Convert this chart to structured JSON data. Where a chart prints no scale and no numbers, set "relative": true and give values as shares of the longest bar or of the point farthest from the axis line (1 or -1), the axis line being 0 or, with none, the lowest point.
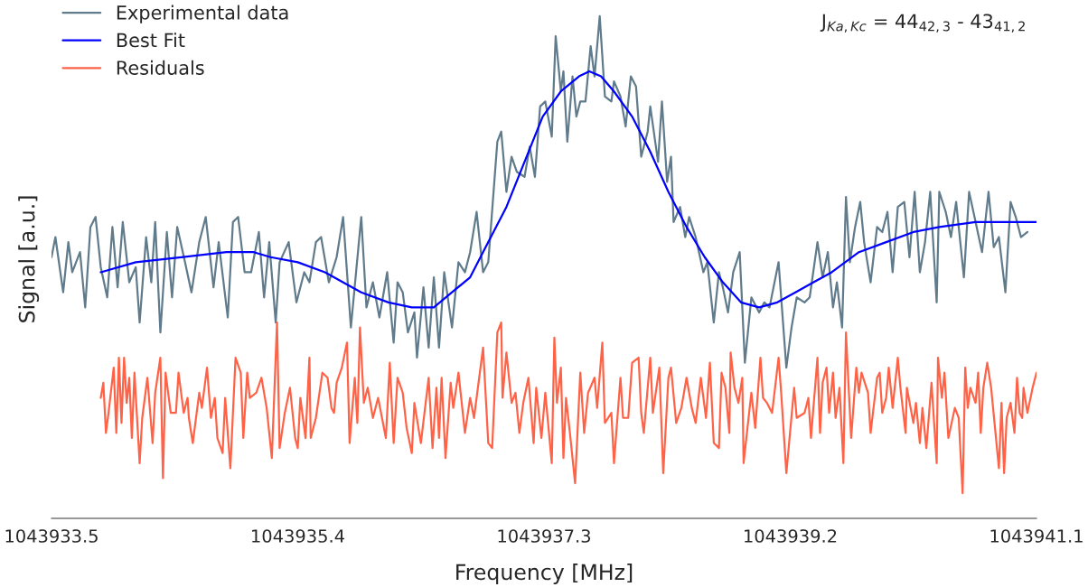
{
  "chart_data": {
    "type": "line",
    "relative": true,
    "xlabel": "Frequency [MHz]",
    "ylabel": "Signal [a.u.]",
    "xlim": [
      1043933.5,
      1043941.1
    ],
    "xticks": [
      1043933.5,
      1043935.4,
      1043937.3,
      1043939.2,
      1043941.1
    ],
    "tick_labels": "x",
    "grid": false,
    "legend": "top left",
    "marker": "none",
    "line_style": "solid",
    "annotations": [
      "J$_{Ka,Kc}$ = 44$_{42,3}$ - 43$_{41,2}$"
    ],
    "series": [
      {
        "name": "Experimental data",
        "color": "#607b8b",
        "x": [
          1043933.5,
          1043933.53,
          1043933.59,
          1043933.63,
          1043933.66,
          1043933.72,
          1043933.76,
          1043933.8,
          1043933.84,
          1043933.88,
          1043933.93,
          1043933.97,
          1043934.01,
          1043934.05,
          1043934.1,
          1043934.15,
          1043934.18,
          1043934.23,
          1043934.27,
          1043934.3,
          1043934.34,
          1043934.39,
          1043934.43,
          1043934.47,
          1043934.53,
          1043934.58,
          1043934.64,
          1043934.69,
          1043934.75,
          1043934.79,
          1043934.86,
          1043934.9,
          1043934.94,
          1043934.99,
          1043935.04,
          1043935.1,
          1043935.14,
          1043935.18,
          1043935.23,
          1043935.26,
          1043935.33,
          1043935.39,
          1043935.45,
          1043935.49,
          1043935.54,
          1043935.58,
          1043935.64,
          1043935.7,
          1043935.75,
          1043935.81,
          1043935.85,
          1043935.89,
          1043935.93,
          1043935.98,
          1043936.03,
          1043936.09,
          1043936.14,
          1043936.17,
          1043936.21,
          1043936.25,
          1043936.3,
          1043936.32,
          1043936.37,
          1043936.41,
          1043936.45,
          1043936.49,
          1043936.53,
          1043936.59,
          1043936.64,
          1043936.69,
          1043936.73,
          1043936.78,
          1043936.83,
          1043936.87,
          1043936.94,
          1043936.97,
          1043937.01,
          1043937.05,
          1043937.09,
          1043937.15,
          1043937.19,
          1043937.23,
          1043937.27,
          1043937.31,
          1043937.36,
          1043937.39,
          1043937.43,
          1043937.45,
          1043937.48,
          1043937.52,
          1043937.55,
          1043937.58,
          1043937.62,
          1043937.66,
          1043937.69,
          1043937.73,
          1043937.77,
          1043937.82,
          1043937.84,
          1043937.89,
          1043937.93,
          1043937.97,
          1043938.01,
          1043938.05,
          1043938.1,
          1043938.12,
          1043938.18,
          1043938.21,
          1043938.25,
          1043938.28,
          1043938.3,
          1043938.35,
          1043938.39,
          1043938.42,
          1043938.47,
          1043938.53,
          1043938.56,
          1043938.61,
          1043938.65,
          1043938.68,
          1043938.72,
          1043938.76,
          1043938.81,
          1043938.85,
          1043938.9,
          1043938.96,
          1043939.0,
          1043939.04,
          1043939.11,
          1043939.17,
          1043939.21,
          1043939.25,
          1043939.31,
          1043939.35,
          1043939.41,
          1043939.45,
          1043939.49,
          1043939.53,
          1043939.56,
          1043939.6,
          1043939.63,
          1043939.66,
          1043939.7,
          1043939.74,
          1043939.77,
          1043939.82,
          1043939.87,
          1043939.91,
          1043939.95,
          1043939.99,
          1043940.03,
          1043940.08,
          1043940.12,
          1043940.16,
          1043940.2,
          1043940.24,
          1043940.28,
          1043940.33,
          1043940.35,
          1043940.4,
          1043940.44,
          1043940.48,
          1043940.54,
          1043940.58,
          1043940.63,
          1043940.68,
          1043940.73,
          1043940.77,
          1043940.81,
          1043940.86,
          1043940.9,
          1043940.94,
          1043940.98,
          1043941.03
        ],
        "values": [
          0.52,
          0.56,
          0.45,
          0.55,
          0.49,
          0.53,
          0.42,
          0.58,
          0.6,
          0.5,
          0.44,
          0.58,
          0.46,
          0.59,
          0.47,
          0.5,
          0.39,
          0.56,
          0.47,
          0.59,
          0.37,
          0.57,
          0.44,
          0.58,
          0.51,
          0.45,
          0.55,
          0.6,
          0.46,
          0.55,
          0.4,
          0.59,
          0.6,
          0.49,
          0.49,
          0.57,
          0.44,
          0.55,
          0.39,
          0.51,
          0.55,
          0.43,
          0.49,
          0.47,
          0.55,
          0.56,
          0.47,
          0.52,
          0.6,
          0.38,
          0.49,
          0.6,
          0.42,
          0.47,
          0.4,
          0.49,
          0.35,
          0.47,
          0.45,
          0.37,
          0.41,
          0.32,
          0.46,
          0.34,
          0.48,
          0.34,
          0.49,
          0.38,
          0.51,
          0.49,
          0.53,
          0.61,
          0.49,
          0.51,
          0.75,
          0.77,
          0.65,
          0.72,
          0.69,
          0.68,
          0.74,
          0.68,
          0.82,
          0.83,
          0.76,
          0.96,
          0.85,
          0.89,
          0.75,
          0.88,
          0.8,
          0.83,
          0.83,
          0.94,
          0.88,
          1.0,
          0.84,
          0.83,
          0.87,
          0.84,
          0.78,
          0.88,
          0.86,
          0.72,
          0.77,
          0.82,
          0.71,
          0.83,
          0.67,
          0.72,
          0.59,
          0.62,
          0.56,
          0.6,
          0.56,
          0.49,
          0.51,
          0.39,
          0.49,
          0.46,
          0.41,
          0.49,
          0.53,
          0.31,
          0.44,
          0.41,
          0.43,
          0.42,
          0.51,
          0.3,
          0.38,
          0.44,
          0.43,
          0.44,
          0.55,
          0.48,
          0.53,
          0.42,
          0.47,
          0.38,
          0.64,
          0.51,
          0.58,
          0.63,
          0.55,
          0.47,
          0.58,
          0.57,
          0.61,
          0.49,
          0.62,
          0.63,
          0.52,
          0.65,
          0.49,
          0.55,
          0.65,
          0.43,
          0.65,
          0.61,
          0.56,
          0.63,
          0.48,
          0.65,
          0.59,
          0.53,
          0.65,
          0.54,
          0.56,
          0.45,
          0.63,
          0.6,
          0.56,
          0.57
        ]
      },
      {
        "name": "Best Fit",
        "color": "#0000ff",
        "x": [
          1043933.88,
          1043934.15,
          1043934.5,
          1043934.85,
          1043935.06,
          1043935.19,
          1043935.4,
          1043935.61,
          1043935.89,
          1043936.1,
          1043936.28,
          1043936.45,
          1043936.59,
          1043936.73,
          1043936.87,
          1043937.01,
          1043937.15,
          1043937.29,
          1043937.43,
          1043937.57,
          1043937.65,
          1043937.74,
          1043937.84,
          1043937.98,
          1043938.12,
          1043938.26,
          1043938.4,
          1043938.54,
          1043938.68,
          1043938.82,
          1043938.96,
          1043939.1,
          1043939.24,
          1043939.38,
          1043939.52,
          1043939.73,
          1043939.94,
          1043940.15,
          1043940.35,
          1043940.63,
          1043940.84,
          1043941.1
        ],
        "values": [
          0.49,
          0.51,
          0.52,
          0.53,
          0.53,
          0.52,
          0.51,
          0.49,
          0.45,
          0.43,
          0.42,
          0.42,
          0.45,
          0.48,
          0.55,
          0.62,
          0.71,
          0.8,
          0.85,
          0.88,
          0.89,
          0.88,
          0.85,
          0.8,
          0.73,
          0.65,
          0.58,
          0.52,
          0.47,
          0.43,
          0.42,
          0.43,
          0.45,
          0.47,
          0.49,
          0.53,
          0.55,
          0.57,
          0.58,
          0.59,
          0.59,
          0.59
        ]
      },
      {
        "name": "Residuals",
        "color": "#ff6347",
        "x": [
          1043933.88,
          1043933.9,
          1043933.92,
          1043933.94,
          1043933.98,
          1043934.0,
          1043934.02,
          1043934.04,
          1043934.06,
          1043934.08,
          1043934.1,
          1043934.12,
          1043934.14,
          1043934.18,
          1043934.2,
          1043934.24,
          1043934.28,
          1043934.3,
          1043934.34,
          1043934.36,
          1043934.38,
          1043934.42,
          1043934.46,
          1043934.48,
          1043934.52,
          1043934.55,
          1043934.56,
          1043934.59,
          1043934.64,
          1043934.66,
          1043934.7,
          1043934.73,
          1043934.76,
          1043934.78,
          1043934.82,
          1043934.84,
          1043934.88,
          1043934.92,
          1043934.96,
          1043934.98,
          1043935.01,
          1043935.03,
          1043935.08,
          1043935.12,
          1043935.16,
          1043935.2,
          1043935.24,
          1043935.26,
          1043935.3,
          1043935.34,
          1043935.38,
          1043935.4,
          1043935.42,
          1043935.46,
          1043935.49,
          1043935.5,
          1043935.54,
          1043935.59,
          1043935.63,
          1043935.66,
          1043935.68,
          1043935.7,
          1043935.74,
          1043935.78,
          1043935.8,
          1043935.84,
          1043935.86,
          1043935.88,
          1043935.91,
          1043935.94,
          1043935.98,
          1043936.02,
          1043936.08,
          1043936.11,
          1043936.14,
          1043936.17,
          1043936.21,
          1043936.24,
          1043936.28,
          1043936.3,
          1043936.35,
          1043936.41,
          1043936.44,
          1043936.47,
          1043936.49,
          1043936.51,
          1043936.54,
          1043936.58,
          1043936.6,
          1043936.64,
          1043936.69,
          1043936.73,
          1043936.76,
          1043936.83,
          1043936.87,
          1043936.9,
          1043936.94,
          1043936.97,
          1043936.98,
          1043937.01,
          1043937.05,
          1043937.08,
          1043937.11,
          1043937.14,
          1043937.18,
          1043937.22,
          1043937.24,
          1043937.28,
          1043937.31,
          1043937.36,
          1043937.38,
          1043937.4,
          1043937.43,
          1043937.45,
          1043937.47,
          1043937.5,
          1043937.54,
          1043937.58,
          1043937.61,
          1043937.64,
          1043937.69,
          1043937.71,
          1043937.75,
          1043937.77,
          1043937.82,
          1043937.84,
          1043937.89,
          1043937.91,
          1043937.95,
          1043937.98,
          1043938.03,
          1043938.05,
          1043938.07,
          1043938.12,
          1043938.14,
          1043938.19,
          1043938.22,
          1043938.26,
          1043938.28,
          1043938.32,
          1043938.36,
          1043938.4,
          1043938.44,
          1043938.47,
          1043938.51,
          1043938.55,
          1043938.58,
          1043938.61,
          1043938.65,
          1043938.67,
          1043938.7,
          1043938.73,
          1043938.74,
          1043938.77,
          1043938.8,
          1043938.83,
          1043938.84,
          1043938.9,
          1043938.93,
          1043938.97,
          1043938.99,
          1043939.02,
          1043939.06,
          1043939.11,
          1043939.13,
          1043939.17,
          1043939.23,
          1043939.25,
          1043939.31,
          1043939.34,
          1043939.36,
          1043939.41,
          1043939.43,
          1043939.45,
          1043939.48,
          1043939.5,
          1043939.53,
          1043939.55,
          1043939.58,
          1043939.61,
          1043939.63,
          1043939.67,
          1043939.71,
          1043939.73,
          1043939.75,
          1043939.8,
          1043939.82,
          1043939.87,
          1043939.89,
          1043939.91,
          1043939.94,
          1043939.96,
          1043939.99,
          1043940.03,
          1043940.05,
          1043940.09,
          1043940.1,
          1043940.15,
          1043940.17,
          1043940.2,
          1043940.22,
          1043940.25,
          1043940.29,
          1043940.33,
          1043940.34,
          1043940.37,
          1043940.39,
          1043940.42,
          1043940.47,
          1043940.5,
          1043940.53,
          1043940.55,
          1043940.57,
          1043940.59,
          1043940.63,
          1043940.65,
          1043940.67,
          1043940.69,
          1043940.72,
          1043940.75,
          1043940.81,
          1043940.83,
          1043940.85,
          1043940.87,
          1043940.9,
          1043940.93,
          1043940.95,
          1043940.97,
          1043940.99,
          1043941.0,
          1043941.03,
          1043941.07,
          1043941.1
        ],
        "values": [
          0.24,
          0.27,
          0.17,
          0.21,
          0.3,
          0.17,
          0.32,
          0.19,
          0.32,
          0.23,
          0.28,
          0.16,
          0.29,
          0.11,
          0.2,
          0.28,
          0.15,
          0.25,
          0.32,
          0.08,
          0.29,
          0.21,
          0.21,
          0.29,
          0.21,
          0.24,
          0.2,
          0.15,
          0.25,
          0.22,
          0.3,
          0.2,
          0.24,
          0.16,
          0.13,
          0.24,
          0.1,
          0.32,
          0.29,
          0.16,
          0.29,
          0.24,
          0.25,
          0.28,
          0.22,
          0.12,
          0.39,
          0.14,
          0.21,
          0.26,
          0.16,
          0.14,
          0.24,
          0.16,
          0.32,
          0.16,
          0.2,
          0.29,
          0.28,
          0.22,
          0.21,
          0.27,
          0.3,
          0.35,
          0.15,
          0.28,
          0.19,
          0.38,
          0.23,
          0.26,
          0.2,
          0.24,
          0.16,
          0.31,
          0.15,
          0.28,
          0.25,
          0.18,
          0.13,
          0.23,
          0.15,
          0.28,
          0.14,
          0.26,
          0.16,
          0.28,
          0.12,
          0.27,
          0.22,
          0.29,
          0.17,
          0.24,
          0.2,
          0.34,
          0.15,
          0.14,
          0.37,
          0.39,
          0.24,
          0.33,
          0.23,
          0.25,
          0.17,
          0.23,
          0.28,
          0.15,
          0.26,
          0.16,
          0.25,
          0.11,
          0.36,
          0.23,
          0.3,
          0.12,
          0.24,
          0.17,
          0.07,
          0.29,
          0.17,
          0.25,
          0.28,
          0.22,
          0.35,
          0.19,
          0.21,
          0.11,
          0.28,
          0.2,
          0.2,
          0.31,
          0.32,
          0.21,
          0.17,
          0.32,
          0.21,
          0.3,
          0.09,
          0.28,
          0.3,
          0.19,
          0.22,
          0.28,
          0.22,
          0.19,
          0.28,
          0.2,
          0.31,
          0.15,
          0.14,
          0.29,
          0.26,
          0.17,
          0.33,
          0.26,
          0.23,
          0.28,
          0.11,
          0.25,
          0.18,
          0.32,
          0.24,
          0.23,
          0.21,
          0.32,
          0.25,
          0.09,
          0.26,
          0.2,
          0.21,
          0.24,
          0.16,
          0.32,
          0.17,
          0.27,
          0.3,
          0.21,
          0.29,
          0.2,
          0.26,
          0.11,
          0.37,
          0.16,
          0.3,
          0.25,
          0.29,
          0.25,
          0.17,
          0.28,
          0.29,
          0.21,
          0.24,
          0.3,
          0.22,
          0.32,
          0.26,
          0.17,
          0.26,
          0.19,
          0.23,
          0.15,
          0.22,
          0.14,
          0.27,
          0.11,
          0.32,
          0.24,
          0.29,
          0.16,
          0.22,
          0.2,
          0.05,
          0.3,
          0.22,
          0.26,
          0.23,
          0.29,
          0.17,
          0.26,
          0.31,
          0.26,
          0.1,
          0.23,
          0.09,
          0.2,
          0.23,
          0.17,
          0.28,
          0.21,
          0.2,
          0.26,
          0.21,
          0.26,
          0.29
        ]
      }
    ]
  }
}
